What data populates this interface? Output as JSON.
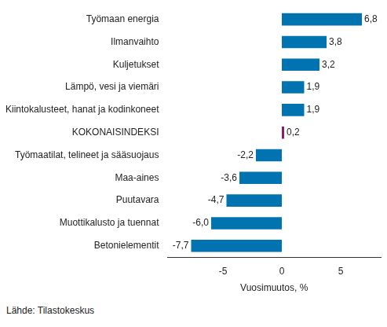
{
  "chart_data": {
    "type": "bar",
    "orientation": "horizontal",
    "categories": [
      "Työmaan energia",
      "Ilmanvaihto",
      "Kuljetukset",
      "Lämpö, vesi ja viemäri",
      "Kiintokalusteet, hanat ja kodinkoneet",
      "KOKONAISINDEKSI",
      "Työmaatilat, telineet ja sääsuojaus",
      "Maa-aines",
      "Puutavara",
      "Muottikalusto ja tuennat",
      "Betonielementit"
    ],
    "values": [
      6.8,
      3.8,
      3.2,
      1.9,
      1.9,
      0.2,
      -2.2,
      -3.6,
      -4.7,
      -6.0,
      -7.7
    ],
    "value_labels": [
      "6,8",
      "3,8",
      "3,2",
      "1,9",
      "1,9",
      "0,2",
      "-2,2",
      "-3,6",
      "-4,7",
      "-6,0",
      "-7,7"
    ],
    "colors": [
      "#0073b0",
      "#0073b0",
      "#0073b0",
      "#0073b0",
      "#0073b0",
      "#8c1a6a",
      "#0073b0",
      "#0073b0",
      "#0073b0",
      "#0073b0",
      "#0073b0"
    ],
    "xlim": [
      -9.7,
      8.4
    ],
    "xticks": [
      -5,
      0,
      5
    ],
    "x_label": "Vuosimuutos, %",
    "source": "Lähde: Tilastokeskus",
    "grid": false,
    "data_labels": true
  }
}
